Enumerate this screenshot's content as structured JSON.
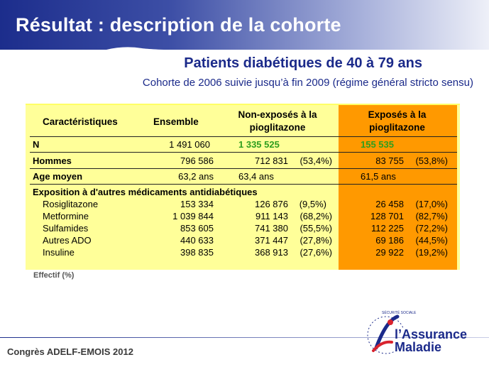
{
  "slide": {
    "title": "Résultat : description de la cohorte",
    "subtitle": "Patients diabétiques de 40 à 79 ans",
    "cohort": "Cohorte de 2006 suivie jusqu’à fin 2009 (régime général stricto sensu)",
    "note": "Effectif (%)",
    "footer": "Congrès ADELF-EMOIS 2012",
    "logo_line1": "l’Assurance",
    "logo_line2": "Maladie",
    "logo_ring": "SÉCURITÉ SOCIALE"
  },
  "colors": {
    "header_blue": "#1c2d8c",
    "table_yellow": "#ffff99",
    "exposed_orange": "#ff9900",
    "highlight_green": "#2e9e1e"
  },
  "table": {
    "headers": {
      "c1": "Caractéristiques",
      "c2": "Ensemble",
      "c3a": "Non-exposés à la",
      "c3b": "pioglitazone",
      "c4a": "Exposés à la",
      "c4b": "pioglitazone"
    },
    "rows": [
      {
        "label": "N",
        "ens": "1 491 060",
        "ne": "1 335 525",
        "ne_pct": "",
        "e": "155 535",
        "e_pct": ""
      },
      {
        "label": "Hommes",
        "ens": "796 586",
        "ne": "712 831",
        "ne_pct": "(53,4%)",
        "e": "83 755",
        "e_pct": "(53,8%)"
      },
      {
        "label": "Age moyen",
        "ens": "63,2 ans",
        "ne": "63,4 ans",
        "ne_pct": "",
        "e": "61,5 ans",
        "e_pct": ""
      }
    ],
    "section": "Exposition à d'autres médicaments antidiabétiques",
    "drugs": [
      {
        "label": "Rosiglitazone",
        "ens": "153 334",
        "ne": "126 876",
        "ne_pct": "(9,5%)",
        "e": "26 458",
        "e_pct": "(17,0%)"
      },
      {
        "label": "Metformine",
        "ens": "1 039 844",
        "ne": "911 143",
        "ne_pct": "(68,2%)",
        "e": "128 701",
        "e_pct": "(82,7%)"
      },
      {
        "label": "Sulfamides",
        "ens": "853 605",
        "ne": "741 380",
        "ne_pct": "(55,5%)",
        "e": "112 225",
        "e_pct": "(72,2%)"
      },
      {
        "label": "Autres ADO",
        "ens": "440 633",
        "ne": "371 447",
        "ne_pct": "(27,8%)",
        "e": "69 186",
        "e_pct": "(44,5%)"
      },
      {
        "label": "Insuline",
        "ens": "398 835",
        "ne": "368 913",
        "ne_pct": "(27,6%)",
        "e": "29 922",
        "e_pct": "(19,2%)"
      }
    ]
  }
}
